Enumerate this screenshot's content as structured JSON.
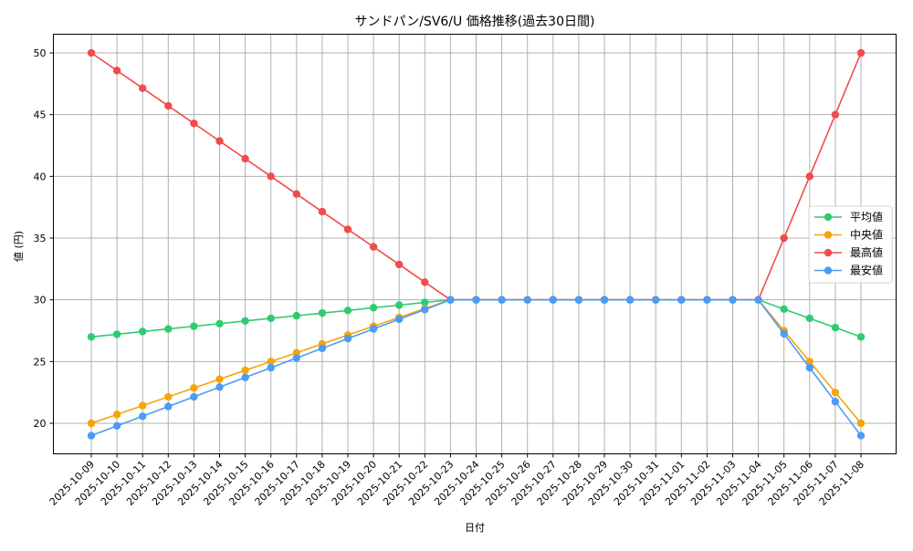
{
  "chart_data": {
    "type": "line",
    "title": "サンドパン/SV6/U 価格推移(過去30日間)",
    "xlabel": "日付",
    "ylabel": "値 (円)",
    "ylim": [
      17.5,
      51.6
    ],
    "yticks": [
      20,
      25,
      30,
      35,
      40,
      45,
      50
    ],
    "grid": true,
    "legend_position": "center right",
    "x": [
      "2025-10-09",
      "2025-10-10",
      "2025-10-11",
      "2025-10-12",
      "2025-10-13",
      "2025-10-14",
      "2025-10-15",
      "2025-10-16",
      "2025-10-17",
      "2025-10-18",
      "2025-10-19",
      "2025-10-20",
      "2025-10-21",
      "2025-10-22",
      "2025-10-23",
      "2025-10-24",
      "2025-10-25",
      "2025-10-26",
      "2025-10-27",
      "2025-10-28",
      "2025-10-29",
      "2025-10-30",
      "2025-10-31",
      "2025-11-01",
      "2025-11-02",
      "2025-11-03",
      "2025-11-04",
      "2025-11-05",
      "2025-11-06",
      "2025-11-07",
      "2025-11-08"
    ],
    "series": [
      {
        "name": "平均値",
        "color": "#2ecc71",
        "values": [
          27.0,
          27.21,
          27.43,
          27.64,
          27.86,
          28.07,
          28.29,
          28.5,
          28.71,
          28.93,
          29.14,
          29.36,
          29.57,
          29.79,
          30,
          30,
          30,
          30,
          30,
          30,
          30,
          30,
          30,
          30,
          30,
          30,
          30,
          29.25,
          28.5,
          27.75,
          27.0
        ]
      },
      {
        "name": "中央値",
        "color": "#f5a50a",
        "values": [
          20.0,
          20.71,
          21.43,
          22.14,
          22.86,
          23.57,
          24.29,
          25.0,
          25.71,
          26.43,
          27.14,
          27.86,
          28.57,
          29.29,
          30,
          30,
          30,
          30,
          30,
          30,
          30,
          30,
          30,
          30,
          30,
          30,
          30,
          27.5,
          25.0,
          22.5,
          20.0
        ]
      },
      {
        "name": "最高値",
        "color": "#f24b4b",
        "values": [
          50.0,
          48.57,
          47.14,
          45.71,
          44.29,
          42.86,
          41.43,
          40.0,
          38.57,
          37.14,
          35.71,
          34.29,
          32.86,
          31.43,
          30,
          30,
          30,
          30,
          30,
          30,
          30,
          30,
          30,
          30,
          30,
          30,
          30,
          35.0,
          40.0,
          45.0,
          50.0
        ]
      },
      {
        "name": "最安値",
        "color": "#4c9bf5",
        "values": [
          19.0,
          19.79,
          20.57,
          21.36,
          22.14,
          22.93,
          23.71,
          24.5,
          25.29,
          26.07,
          26.86,
          27.64,
          28.43,
          29.21,
          30,
          30,
          30,
          30,
          30,
          30,
          30,
          30,
          30,
          30,
          30,
          30,
          30,
          27.25,
          24.5,
          21.75,
          19.0
        ]
      }
    ]
  }
}
